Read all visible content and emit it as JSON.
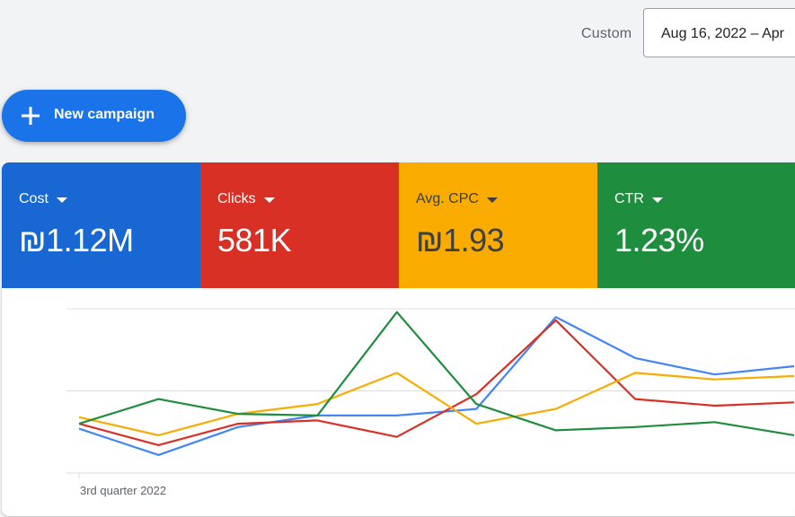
{
  "header": {
    "range_label": "Custom",
    "date_range": "Aug 16, 2022 – Apr"
  },
  "actions": {
    "new_campaign": "New campaign"
  },
  "colors": {
    "accent": "#1a73e8",
    "cost": "#1967d2",
    "clicks": "#d93025",
    "avg_cpc": "#f9ab00",
    "ctr": "#1e8e3e"
  },
  "tiles": [
    {
      "name": "Cost",
      "value": "₪1.12M",
      "bg": "#1967d2",
      "fg": "#ffffff"
    },
    {
      "name": "Clicks",
      "value": "581K",
      "bg": "#d93025",
      "fg": "#ffffff"
    },
    {
      "name": "Avg. CPC",
      "value": "₪1.93",
      "bg": "#f9ab00",
      "fg": "#3c4043"
    },
    {
      "name": "CTR",
      "value": "1.23%",
      "bg": "#1e8e3e",
      "fg": "#ffffff"
    }
  ],
  "chart_data": {
    "type": "line",
    "xlabel": "3rd quarter 2022",
    "ylim": [
      0,
      100
    ],
    "grid": true,
    "series": [
      {
        "key": "cost",
        "color": "#4285f4",
        "values": [
          27,
          11,
          28,
          35,
          35,
          39,
          95,
          70,
          60,
          65
        ]
      },
      {
        "key": "clicks",
        "color": "#d93025",
        "values": [
          30,
          17,
          30,
          32,
          22,
          48,
          93,
          45,
          41,
          43
        ]
      },
      {
        "key": "avg_cpc",
        "color": "#f9ab00",
        "values": [
          34,
          23,
          36,
          42,
          61,
          30,
          39,
          61,
          57,
          59
        ]
      },
      {
        "key": "ctr",
        "color": "#1e8e3e",
        "values": [
          30,
          45,
          36,
          35,
          98,
          42,
          26,
          28,
          31,
          23
        ]
      }
    ]
  }
}
